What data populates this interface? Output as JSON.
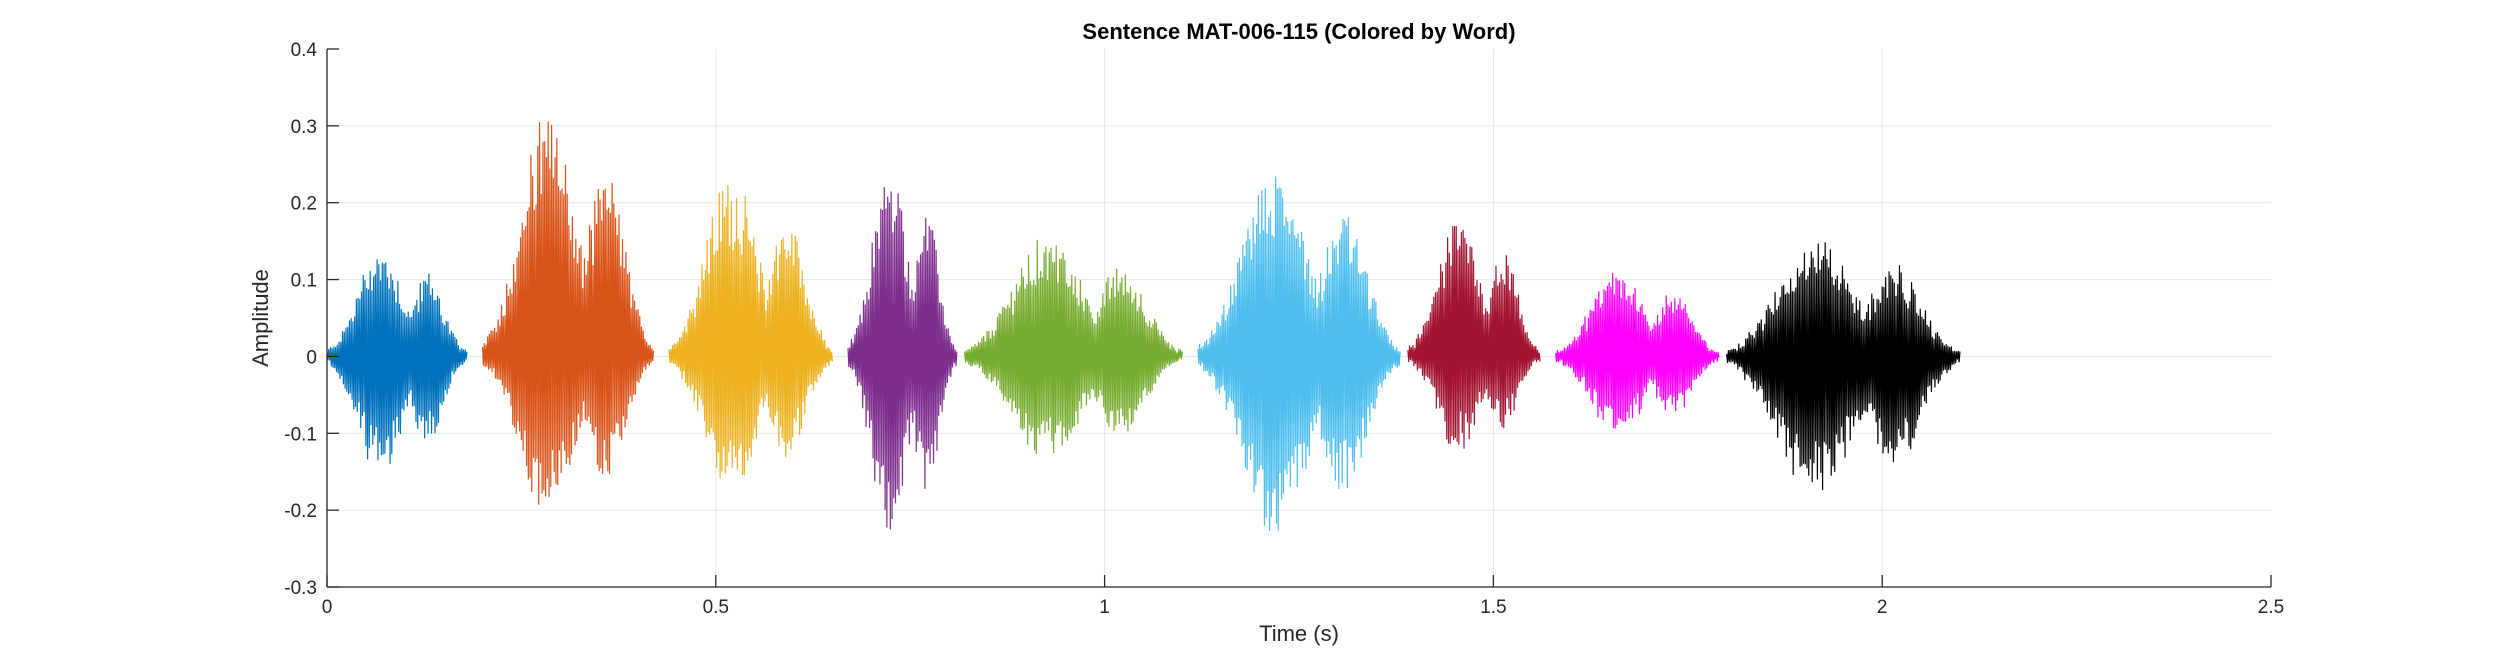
{
  "chart_data": {
    "type": "line",
    "title": "Sentence MAT-006-115 (Colored by Word)",
    "xlabel": "Time (s)",
    "ylabel": "Amplitude",
    "xlim": [
      0,
      2.5
    ],
    "ylim": [
      -0.3,
      0.4
    ],
    "x_ticks": [
      0,
      0.5,
      1,
      1.5,
      2,
      2.5
    ],
    "x_tick_labels": [
      "0",
      "0.5",
      "1",
      "1.5",
      "2",
      "2.5"
    ],
    "y_ticks": [
      -0.3,
      -0.2,
      -0.1,
      0,
      0.1,
      0.2,
      0.3,
      0.4
    ],
    "y_tick_labels": [
      "-0.3",
      "-0.2",
      "-0.1",
      "0",
      "0.1",
      "0.2",
      "0.3",
      "0.4"
    ],
    "grid": true,
    "series": [
      {
        "color": "#0072BD",
        "x_range": [
          0.0,
          0.18
        ],
        "max": 0.14,
        "min": -0.15
      },
      {
        "color": "#D95319",
        "x_range": [
          0.2,
          0.42
        ],
        "max": 0.31,
        "min": -0.2
      },
      {
        "color": "#EDB120",
        "x_range": [
          0.44,
          0.65
        ],
        "max": 0.23,
        "min": -0.17
      },
      {
        "color": "#7E2F8E",
        "x_range": [
          0.67,
          0.81
        ],
        "max": 0.24,
        "min": -0.23
      },
      {
        "color": "#77AC30",
        "x_range": [
          0.82,
          1.1
        ],
        "max": 0.15,
        "min": -0.13
      },
      {
        "color": "#4DBEEE",
        "x_range": [
          1.12,
          1.38
        ],
        "max": 0.24,
        "min": -0.23
      },
      {
        "color": "#A2142F",
        "x_range": [
          1.39,
          1.56
        ],
        "max": 0.17,
        "min": -0.12
      },
      {
        "color": "#FF00FF",
        "x_range": [
          1.58,
          1.79
        ],
        "max": 0.11,
        "min": -0.1
      },
      {
        "color": "#000000",
        "x_range": [
          1.8,
          2.1
        ],
        "max": 0.15,
        "min": -0.18
      }
    ]
  }
}
